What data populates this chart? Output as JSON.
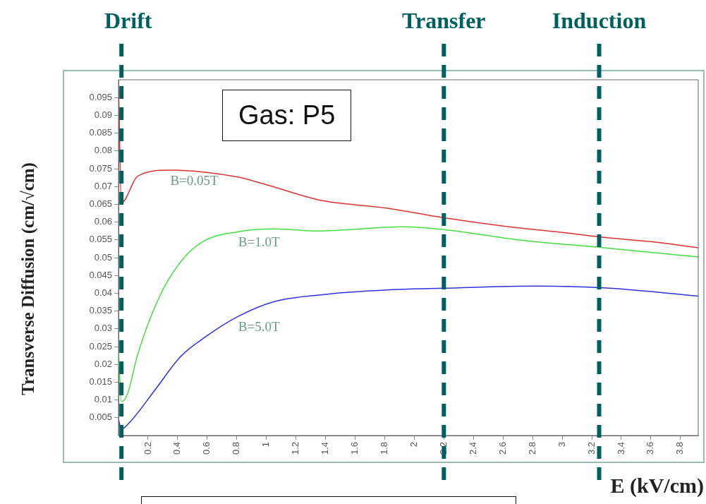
{
  "chart_data": {
    "type": "line",
    "xlabel": "E (kV/cm)",
    "ylabel": "Transverse Diffusion (cm/√cm)",
    "xlim": [
      0,
      3.92
    ],
    "ylim": [
      0,
      0.1
    ],
    "xticks": [
      0.2,
      0.4,
      0.6,
      0.8,
      1,
      1.2,
      1.4,
      1.6,
      1.8,
      2,
      2.2,
      2.4,
      2.6,
      2.8,
      3,
      3.2,
      3.4,
      3.6,
      3.8
    ],
    "yticks": [
      0.005,
      0.01,
      0.015,
      0.02,
      0.025,
      0.03,
      0.035,
      0.04,
      0.045,
      0.05,
      0.055,
      0.06,
      0.065,
      0.07,
      0.075,
      0.08,
      0.085,
      0.09,
      0.095
    ],
    "grid": false,
    "legend": false,
    "marker": "none",
    "line_style": "solid",
    "annotations": [
      "Gas: P5"
    ],
    "ref_lines": [
      {
        "axis": "x",
        "value": 0.02,
        "label": "Drift",
        "color": "#006060",
        "line_style": "dashed"
      },
      {
        "axis": "x",
        "value": 2.2,
        "label": "Transfer",
        "color": "#006060",
        "line_style": "dashed"
      },
      {
        "axis": "x",
        "value": 3.25,
        "label": "Induction",
        "color": "#006060",
        "line_style": "dashed"
      }
    ],
    "series": [
      {
        "name": "B=0.05T",
        "color": "#e03030",
        "x": [
          0,
          0.02,
          0.13,
          0.35,
          0.8,
          1.0,
          1.38,
          1.8,
          2.2,
          2.6,
          3.0,
          3.28,
          3.6,
          3.92
        ],
        "values": [
          0.099,
          0.0654,
          0.0729,
          0.0746,
          0.0727,
          0.0705,
          0.066,
          0.064,
          0.0612,
          0.0589,
          0.0571,
          0.0557,
          0.0545,
          0.0528
        ]
      },
      {
        "name": "B=1.0T",
        "color": "#40e040",
        "x": [
          0,
          0.02,
          0.06,
          0.13,
          0.27,
          0.42,
          0.57,
          0.81,
          1.05,
          1.35,
          1.92,
          2.2,
          2.72,
          3.28,
          3.92
        ],
        "values": [
          0.0236,
          0.0095,
          0.0116,
          0.0228,
          0.0384,
          0.0488,
          0.0545,
          0.0573,
          0.0581,
          0.0575,
          0.0587,
          0.0579,
          0.0549,
          0.0528,
          0.0502
        ]
      },
      {
        "name": "B=5.0T",
        "color": "#3030e0",
        "x": [
          0,
          0.02,
          0.08,
          0.25,
          0.42,
          0.59,
          0.81,
          1.05,
          1.38,
          1.86,
          2.2,
          2.82,
          3.28,
          3.92
        ],
        "values": [
          0.0045,
          0.0018,
          0.0039,
          0.013,
          0.0222,
          0.0278,
          0.0335,
          0.0376,
          0.0396,
          0.041,
          0.0414,
          0.042,
          0.0415,
          0.0392
        ]
      }
    ]
  }
}
